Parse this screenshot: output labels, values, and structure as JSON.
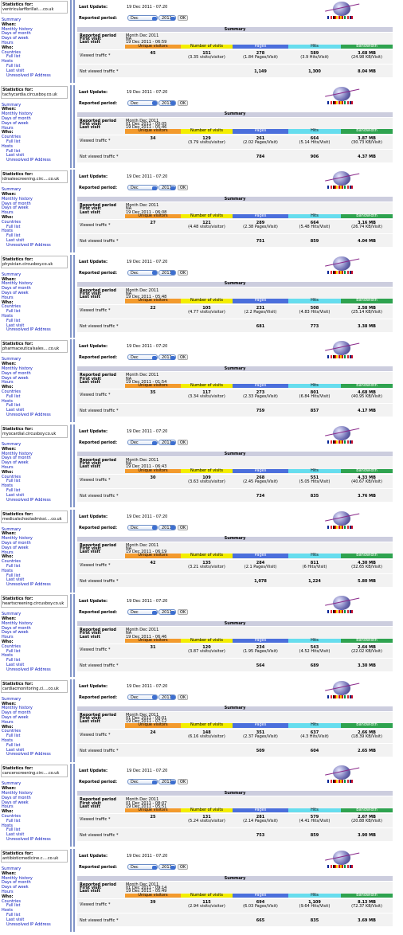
{
  "labels": {
    "stats_for": "Statistics for:",
    "last_update": "Last Update:",
    "reported_period": "Reported period:",
    "month": "Dec",
    "year": "2011",
    "ok": "OK",
    "summary": "Summary",
    "rp_label": "Reported period",
    "rp_value": "Month Dec 2011",
    "first_visit": "First visit",
    "last_visit": "Last visit",
    "cols": [
      "Unique visitors",
      "Number of visits",
      "Pages",
      "Hits",
      "Bandwidth"
    ],
    "viewed": "Viewed traffic *",
    "not_viewed": "Not viewed traffic *"
  },
  "menu": [
    "Summary",
    "When:",
    "Monthly history",
    "Days of month",
    "Days of week",
    "Hours",
    "Who:",
    "Countries",
    "Full list",
    "Hosts",
    "Full list",
    "Last visit",
    "Unresolved IP Address"
  ],
  "panels": [
    {
      "site": "ventricularfibrillat....co.uk",
      "updated": "19 Dec 2011 - 07:20",
      "first": "NA",
      "last": "19 Dec 2011 - 06:59",
      "unique": "45",
      "visits": "151",
      "visits_sub": "(3.35 visits/visitor)",
      "pages": "278",
      "pages_sub": "(1.84 Pages/Visit)",
      "hits": "589",
      "hits_sub": "(3.9 Hits/Visit)",
      "bw": "3.68 MB",
      "bw_sub": "(24.98 KB/Visit)",
      "nv_pages": "1,149",
      "nv_hits": "1,300",
      "nv_bw": "8.04 MB"
    },
    {
      "site": "tachycardia.circusboy.co.uk",
      "updated": "19 Dec 2011 - 07:20",
      "first": "01 Dec 2011 - 00:05",
      "last": "19 Dec 2011 - 05:46",
      "unique": "34",
      "visits": "129",
      "visits_sub": "(3.79 visits/visitor)",
      "pages": "261",
      "pages_sub": "(2.02 Pages/Visit)",
      "hits": "664",
      "hits_sub": "(5.14 Hits/Visit)",
      "bw": "3.87 MB",
      "bw_sub": "(30.73 KB/Visit)",
      "nv_pages": "784",
      "nv_hits": "906",
      "nv_bw": "4.37 MB"
    },
    {
      "site": "idrsalescreening.circ....co.uk",
      "updated": "19 Dec 2011 - 07:20",
      "first": "NA",
      "last": "19 Dec 2011 - 06:08",
      "unique": "27",
      "visits": "121",
      "visits_sub": "(4.48 visits/visitor)",
      "pages": "289",
      "pages_sub": "(2.38 Pages/Visit)",
      "hits": "664",
      "hits_sub": "(5.48 Hits/Visit)",
      "bw": "3.16 MB",
      "bw_sub": "(26.74 KB/Visit)",
      "nv_pages": "751",
      "nv_hits": "859",
      "nv_bw": "4.04 MB"
    },
    {
      "site": "physician.circusboy.co.uk",
      "updated": "19 Dec 2011 - 07:20",
      "first": "NA",
      "last": "19 Dec 2011 - 05:48",
      "unique": "22",
      "visits": "105",
      "visits_sub": "(4.77 visits/visitor)",
      "pages": "231",
      "pages_sub": "(2.2 Pages/Visit)",
      "hits": "508",
      "hits_sub": "(4.83 Hits/Visit)",
      "bw": "2.58 MB",
      "bw_sub": "(25.14 KB/Visit)",
      "nv_pages": "681",
      "nv_hits": "773",
      "nv_bw": "3.38 MB"
    },
    {
      "site": "pharmaceuticalsales....co.uk",
      "updated": "19 Dec 2011 - 07:20",
      "first": "NA",
      "last": "19 Dec 2011 - 01:54",
      "unique": "35",
      "visits": "117",
      "visits_sub": "(3.34 visits/visitor)",
      "pages": "273",
      "pages_sub": "(2.33 Pages/Visit)",
      "hits": "801",
      "hits_sub": "(6.84 Hits/Visit)",
      "bw": "4.68 MB",
      "bw_sub": "(40.95 KB/Visit)",
      "nv_pages": "759",
      "nv_hits": "857",
      "nv_bw": "4.17 MB"
    },
    {
      "site": "myocardial.circusboy.co.uk",
      "updated": "19 Dec 2011 - 07:20",
      "first": "NA",
      "last": "19 Dec 2011 - 06:43",
      "unique": "30",
      "visits": "109",
      "visits_sub": "(3.63 visits/visitor)",
      "pages": "268",
      "pages_sub": "(2.45 Pages/Visit)",
      "hits": "551",
      "hits_sub": "(5.05 Hits/Visit)",
      "bw": "4.33 MB",
      "bw_sub": "(40.67 KB/Visit)",
      "nv_pages": "734",
      "nv_hits": "835",
      "nv_bw": "3.76 MB"
    },
    {
      "site": "medicalschooladmissi....co.uk",
      "updated": "19 Dec 2011 - 07:20",
      "first": "NA",
      "last": "19 Dec 2011 - 06:19",
      "unique": "42",
      "visits": "135",
      "visits_sub": "(3.21 visits/visitor)",
      "pages": "284",
      "pages_sub": "(2.1 Pages/Visit)",
      "hits": "811",
      "hits_sub": "(6 Hits/Visit)",
      "bw": "4.30 MB",
      "bw_sub": "(32.65 KB/Visit)",
      "nv_pages": "1,078",
      "nv_hits": "1,224",
      "nv_bw": "5.80 MB"
    },
    {
      "site": "heartscreening.circusboy.co.uk",
      "updated": "19 Dec 2011 - 07:20",
      "first": "NA",
      "last": "19 Dec 2011 - 06:46",
      "unique": "31",
      "visits": "120",
      "visits_sub": "(3.87 visits/visitor)",
      "pages": "234",
      "pages_sub": "(1.95 Pages/Visit)",
      "hits": "543",
      "hits_sub": "(4.52 Hits/Visit)",
      "bw": "2.64 MB",
      "bw_sub": "(22.02 KB/Visit)",
      "nv_pages": "564",
      "nv_hits": "689",
      "nv_bw": "3.30 MB"
    },
    {
      "site": "cardiacmonitoring.ci....co.uk",
      "updated": "19 Dec 2011 - 07:20",
      "first": "01 Dec 2011 - 00:01",
      "last": "19 Dec 2011 - 07:12",
      "unique": "24",
      "visits": "148",
      "visits_sub": "(6.16 visits/visitor)",
      "pages": "351",
      "pages_sub": "(2.37 Pages/Visit)",
      "hits": "637",
      "hits_sub": "(4.3 Hits/Visit)",
      "bw": "2.66 MB",
      "bw_sub": "(18.39 KB/Visit)",
      "nv_pages": "509",
      "nv_hits": "604",
      "nv_bw": "2.65 MB"
    },
    {
      "site": "cancerscreening.circ....co.uk",
      "updated": "19 Dec 2011 - 07:20",
      "first": "01 Dec 2011 - 08:07",
      "last": "19 Dec 2011 - 05:51",
      "unique": "25",
      "visits": "131",
      "visits_sub": "(5.24 visits/visitor)",
      "pages": "281",
      "pages_sub": "(2.14 Pages/Visit)",
      "hits": "579",
      "hits_sub": "(4.41 Hits/Visit)",
      "bw": "2.67 MB",
      "bw_sub": "(20.88 KB/Visit)",
      "nv_pages": "753",
      "nv_hits": "859",
      "nv_bw": "3.90 MB"
    },
    {
      "site": "antibioticmedicine.c....co.uk",
      "updated": "19 Dec 2011 - 07:20",
      "first": "01 Dec 2011 - 09:14",
      "last": "19 Dec 2011 - 05:49",
      "unique": "39",
      "visits": "115",
      "visits_sub": "(2.94 visits/visitor)",
      "pages": "694",
      "pages_sub": "(6.03 Pages/Visit)",
      "hits": "1,109",
      "hits_sub": "(9.64 Hits/Visit)",
      "bw": "8.13 MB",
      "bw_sub": "(72.37 KB/Visit)",
      "nv_pages": "665",
      "nv_hits": "835",
      "nv_bw": "3.69 MB"
    }
  ]
}
